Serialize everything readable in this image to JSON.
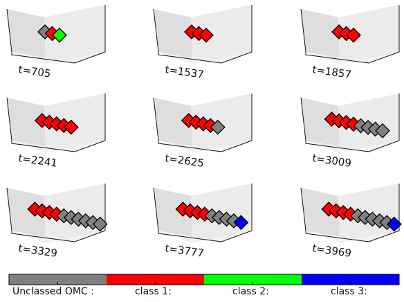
{
  "colors": {
    "unclassified": "#808080",
    "class1": "#ff0000",
    "class2": "#00ff00",
    "class3": "#0000ff",
    "pane": "#ebebeb",
    "pane_dark": "#dedede",
    "edge": "#111111"
  },
  "panels": [
    {
      "label": "t=705",
      "markers": [
        "unclassified",
        "class1",
        "class2"
      ]
    },
    {
      "label": "t=1537",
      "markers": [
        "class1",
        "class1",
        "class1"
      ]
    },
    {
      "label": "t=1857",
      "markers": [
        "class1",
        "class1",
        "class1"
      ]
    },
    {
      "label": "t=2241",
      "markers": [
        "class1",
        "class1",
        "class1",
        "class1",
        "class1"
      ]
    },
    {
      "label": "t=2625",
      "markers": [
        "class1",
        "class1",
        "class1",
        "class1",
        "unclassified"
      ]
    },
    {
      "label": "t=3009",
      "markers": [
        "class1",
        "class1",
        "class1",
        "class1",
        "unclassified",
        "unclassified",
        "unclassified",
        "unclassified"
      ]
    },
    {
      "label": "t=3329",
      "markers": [
        "class1",
        "class1",
        "class1",
        "class1",
        "unclassified",
        "unclassified",
        "unclassified",
        "unclassified",
        "unclassified",
        "unclassified"
      ]
    },
    {
      "label": "t=3777",
      "markers": [
        "class1",
        "class1",
        "class1",
        "class1",
        "unclassified",
        "unclassified",
        "unclassified",
        "unclassified",
        "class3"
      ]
    },
    {
      "label": "t=3969",
      "markers": [
        "class1",
        "class1",
        "class1",
        "class1",
        "unclassified",
        "unclassified",
        "unclassified",
        "unclassified",
        "unclassified",
        "class3"
      ]
    }
  ],
  "legend": [
    {
      "label": "Unclassed OMC :",
      "color_key": "unclassified"
    },
    {
      "label": "class 1:",
      "color_key": "class1"
    },
    {
      "label": "class 2:",
      "color_key": "class2"
    },
    {
      "label": "class 3:",
      "color_key": "class3"
    }
  ]
}
